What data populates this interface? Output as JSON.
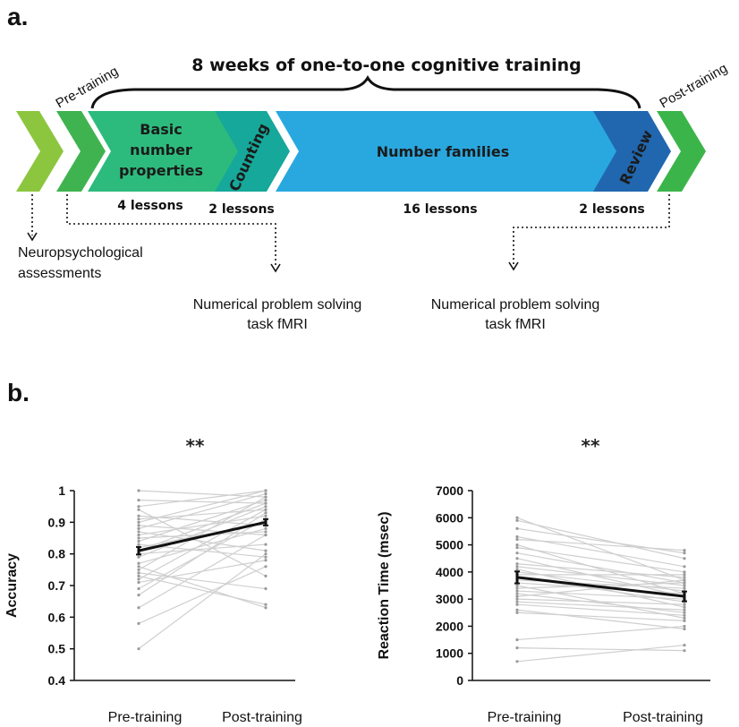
{
  "panel_a": {
    "label": "a.",
    "title": "8 weeks of one-to-one cognitive training",
    "pre_label": "Pre-training",
    "post_label": "Post-training",
    "segments": {
      "basic_line1": "Basic",
      "basic_line2": "number",
      "basic_line3": "properties",
      "counting": "Counting",
      "families": "Number families",
      "review": "Review"
    },
    "lessons": {
      "basic": "4 lessons",
      "counting": "2 lessons",
      "families": "16 lessons",
      "review": "2 lessons"
    },
    "notes": {
      "neuro_line1": "Neuropsychological",
      "neuro_line2": "assessments",
      "fmri1_line1": "Numerical problem solving",
      "fmri1_line2": "task fMRI",
      "fmri2_line1": "Numerical problem solving",
      "fmri2_line2": "task fMRI"
    },
    "colors": {
      "lightgreen": "#8cc63f",
      "green": "#3fb34f",
      "teal_green": "#2dbb7d",
      "teal": "#16a89a",
      "blue": "#29a8e0",
      "darkblue": "#2067b0",
      "bright_green": "#3bb54a"
    }
  },
  "panel_b": {
    "label": "b."
  },
  "chart_data": [
    {
      "type": "line",
      "ylabel": "Accuracy",
      "categories": [
        "Pre-training",
        "Post-training"
      ],
      "ylim": [
        0.4,
        1.0
      ],
      "yticks": [
        "0.4",
        "0.5",
        "0.6",
        "0.7",
        "0.8",
        "0.9",
        "1"
      ],
      "significance": "**",
      "mean": [
        0.81,
        0.9
      ],
      "sem": [
        0.012,
        0.01
      ],
      "subjects": [
        [
          0.5,
          0.8
        ],
        [
          0.58,
          0.76
        ],
        [
          0.63,
          0.86
        ],
        [
          0.67,
          0.93
        ],
        [
          0.71,
          0.78
        ],
        [
          0.72,
          0.94
        ],
        [
          0.73,
          0.64
        ],
        [
          0.75,
          0.98
        ],
        [
          0.76,
          0.63
        ],
        [
          0.77,
          0.88
        ],
        [
          0.79,
          0.95
        ],
        [
          0.8,
          0.83
        ],
        [
          0.81,
          0.96
        ],
        [
          0.82,
          0.9
        ],
        [
          0.83,
          0.79
        ],
        [
          0.84,
          0.97
        ],
        [
          0.85,
          0.87
        ],
        [
          0.86,
          0.92
        ],
        [
          0.88,
          0.99
        ],
        [
          0.89,
          0.86
        ],
        [
          0.9,
          1.0
        ],
        [
          0.91,
          0.94
        ],
        [
          0.92,
          0.89
        ],
        [
          0.95,
          1.0
        ],
        [
          0.97,
          0.96
        ],
        [
          1.0,
          0.98
        ],
        [
          0.74,
          0.69
        ],
        [
          0.69,
          0.91
        ],
        [
          0.87,
          0.81
        ],
        [
          0.94,
          0.73
        ]
      ]
    },
    {
      "type": "line",
      "ylabel": "Reaction Time (msec)",
      "categories": [
        "Pre-training",
        "Post-training"
      ],
      "ylim": [
        0,
        7000
      ],
      "yticks": [
        "0",
        "1000",
        "2000",
        "3000",
        "4000",
        "5000",
        "6000",
        "7000"
      ],
      "significance": "**",
      "mean": [
        3800,
        3100
      ],
      "sem": [
        220,
        180
      ],
      "subjects": [
        [
          700,
          1300
        ],
        [
          1200,
          1100
        ],
        [
          1500,
          2000
        ],
        [
          2500,
          2200
        ],
        [
          2600,
          1900
        ],
        [
          2800,
          2400
        ],
        [
          2900,
          2600
        ],
        [
          3000,
          2800
        ],
        [
          3100,
          3700
        ],
        [
          3200,
          2500
        ],
        [
          3300,
          3000
        ],
        [
          3400,
          3600
        ],
        [
          3500,
          2300
        ],
        [
          3600,
          3200
        ],
        [
          3700,
          3400
        ],
        [
          3800,
          2900
        ],
        [
          3900,
          3900
        ],
        [
          4000,
          3300
        ],
        [
          4100,
          2700
        ],
        [
          4200,
          3500
        ],
        [
          4300,
          3800
        ],
        [
          4500,
          3100
        ],
        [
          4700,
          3600
        ],
        [
          4900,
          4000
        ],
        [
          5000,
          3200
        ],
        [
          5200,
          4800
        ],
        [
          5300,
          4200
        ],
        [
          5900,
          4500
        ],
        [
          6000,
          3700
        ],
        [
          5600,
          4700
        ]
      ]
    }
  ]
}
